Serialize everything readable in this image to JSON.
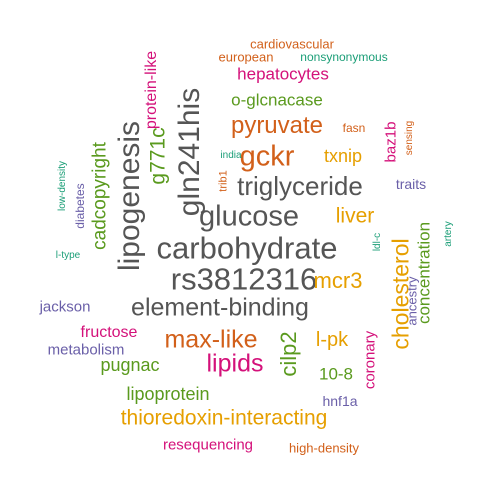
{
  "colors": {
    "gray": "#555555",
    "orange": "#E69F00",
    "magenta": "#D4117A",
    "green": "#5A9A1E",
    "purple": "#6A5FA8",
    "teal": "#1B9E77",
    "rust": "#D2601A"
  },
  "words": [
    {
      "text": "carbohydrate",
      "color": "gray"
    },
    {
      "text": "rs3812316",
      "color": "gray"
    },
    {
      "text": "element-binding",
      "color": "gray"
    },
    {
      "text": "glucose",
      "color": "gray"
    },
    {
      "text": "triglyceride",
      "color": "gray"
    },
    {
      "text": "lipogenesis",
      "color": "gray"
    },
    {
      "text": "gln241his",
      "color": "gray"
    },
    {
      "text": "gckr",
      "color": "rust"
    },
    {
      "text": "pyruvate",
      "color": "rust"
    },
    {
      "text": "max-like",
      "color": "rust"
    },
    {
      "text": "lipids",
      "color": "magenta"
    },
    {
      "text": "thioredoxin-interacting",
      "color": "orange"
    },
    {
      "text": "cholesterol",
      "color": "orange"
    },
    {
      "text": "mcr3",
      "color": "orange"
    },
    {
      "text": "l-pk",
      "color": "orange"
    },
    {
      "text": "liver",
      "color": "orange"
    },
    {
      "text": "txnip",
      "color": "orange"
    },
    {
      "text": "cilp2",
      "color": "green"
    },
    {
      "text": "g771c",
      "color": "green"
    },
    {
      "text": "cadcopyright",
      "color": "green"
    },
    {
      "text": "lipoprotein",
      "color": "green"
    },
    {
      "text": "concentration",
      "color": "green"
    },
    {
      "text": "pugnac",
      "color": "green"
    },
    {
      "text": "o-glcnacase",
      "color": "green"
    },
    {
      "text": "10-8",
      "color": "green"
    },
    {
      "text": "hepatocytes",
      "color": "magenta"
    },
    {
      "text": "protein-like",
      "color": "magenta"
    },
    {
      "text": "resequencing",
      "color": "magenta"
    },
    {
      "text": "fructose",
      "color": "magenta"
    },
    {
      "text": "coronary",
      "color": "magenta"
    },
    {
      "text": "baz1b",
      "color": "magenta"
    },
    {
      "text": "jackson",
      "color": "purple"
    },
    {
      "text": "metabolism",
      "color": "purple"
    },
    {
      "text": "hnf1a",
      "color": "purple"
    },
    {
      "text": "traits",
      "color": "purple"
    },
    {
      "text": "ancestry",
      "color": "purple"
    },
    {
      "text": "diabetes",
      "color": "purple"
    },
    {
      "text": "cardiovascular",
      "color": "rust"
    },
    {
      "text": "european",
      "color": "rust"
    },
    {
      "text": "fasn",
      "color": "rust"
    },
    {
      "text": "high-density",
      "color": "rust"
    },
    {
      "text": "sensing",
      "color": "rust"
    },
    {
      "text": "trib1",
      "color": "rust"
    },
    {
      "text": "nonsynonymous",
      "color": "teal"
    },
    {
      "text": "low-density",
      "color": "teal"
    },
    {
      "text": "l-type",
      "color": "teal"
    },
    {
      "text": "india",
      "color": "teal"
    },
    {
      "text": "ldl-c",
      "color": "teal"
    },
    {
      "text": "artery",
      "color": "teal"
    }
  ]
}
